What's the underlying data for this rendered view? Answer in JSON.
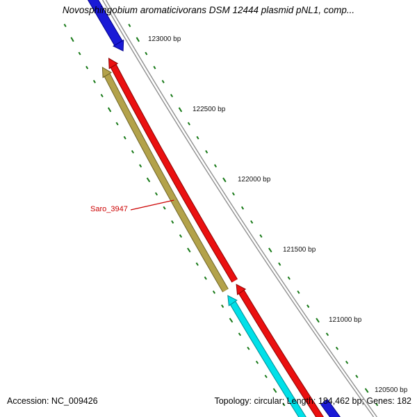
{
  "title": "Novosphingobium aromaticivorans DSM 12444 plasmid pNL1, comp...",
  "ruler": {
    "labels": [
      {
        "text": "123000 bp"
      },
      {
        "text": "122500 bp"
      },
      {
        "text": "122000 bp"
      },
      {
        "text": "121500 bp"
      },
      {
        "text": "121000 bp"
      },
      {
        "text": "120500 bp"
      }
    ]
  },
  "genes": {
    "selected_label": "Saro_3947"
  },
  "status": {
    "accession": "Accession: NC_009426",
    "summary": "Topology: circular; Length: 184,462 bp; Genes: 182"
  },
  "colors": {
    "backbone": "#8f8f8f",
    "tick": "#157815",
    "label_red": "#cc0000",
    "gene_blue": "#1a1ad6",
    "gene_blue_dark": "#00008b",
    "gene_red": "#ea1010",
    "gene_red_dark": "#8b0000",
    "gene_olive": "#b3a24a",
    "gene_olive_dark": "#6e6428",
    "gene_cyan": "#00e0e8",
    "gene_cyan_dark": "#008b94"
  }
}
